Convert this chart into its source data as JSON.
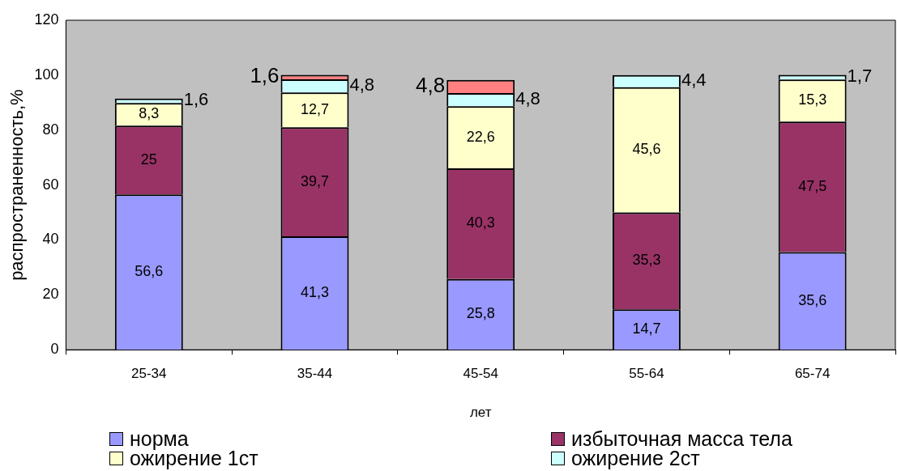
{
  "chart_data": {
    "type": "bar",
    "stacked": true,
    "xlabel": "лет",
    "ylabel": "распространенность,%",
    "categories": [
      "25-34",
      "35-44",
      "45-54",
      "55-64",
      "65-74"
    ],
    "series": [
      {
        "name": "норма",
        "color": "#9999ff",
        "values": [
          56.6,
          41.3,
          25.8,
          14.7,
          35.6
        ],
        "value_labels": [
          "56,6",
          "41,3",
          "25,8",
          "14,7",
          "35,6"
        ]
      },
      {
        "name": "избыточная масса тела",
        "color": "#993366",
        "values": [
          25,
          39.7,
          40.3,
          35.3,
          47.5
        ],
        "value_labels": [
          "25",
          "39,7",
          "40,3",
          "35,3",
          "47,5"
        ]
      },
      {
        "name": "ожирение 1ст",
        "color": "#ffffcc",
        "values": [
          8.3,
          12.7,
          22.6,
          45.6,
          15.3
        ],
        "value_labels": [
          "8,3",
          "12,7",
          "22,6",
          "45,6",
          "15,3"
        ]
      },
      {
        "name": "ожирение 2ст",
        "color": "#ccffff",
        "values": [
          1.6,
          4.8,
          4.8,
          4.4,
          1.7
        ],
        "value_labels": [
          "1,6",
          "4,8",
          "4,8",
          "4,4",
          "1,7"
        ]
      },
      {
        "color": "#ff8080",
        "values": [
          null,
          1.6,
          4.8,
          null,
          null
        ],
        "value_labels": [
          null,
          "1,6",
          "4,8",
          null,
          null
        ]
      }
    ],
    "ylim": [
      0,
      120
    ],
    "yticks": [
      0,
      20,
      40,
      60,
      80,
      100,
      120
    ],
    "grid": false,
    "legend": "bottom"
  }
}
